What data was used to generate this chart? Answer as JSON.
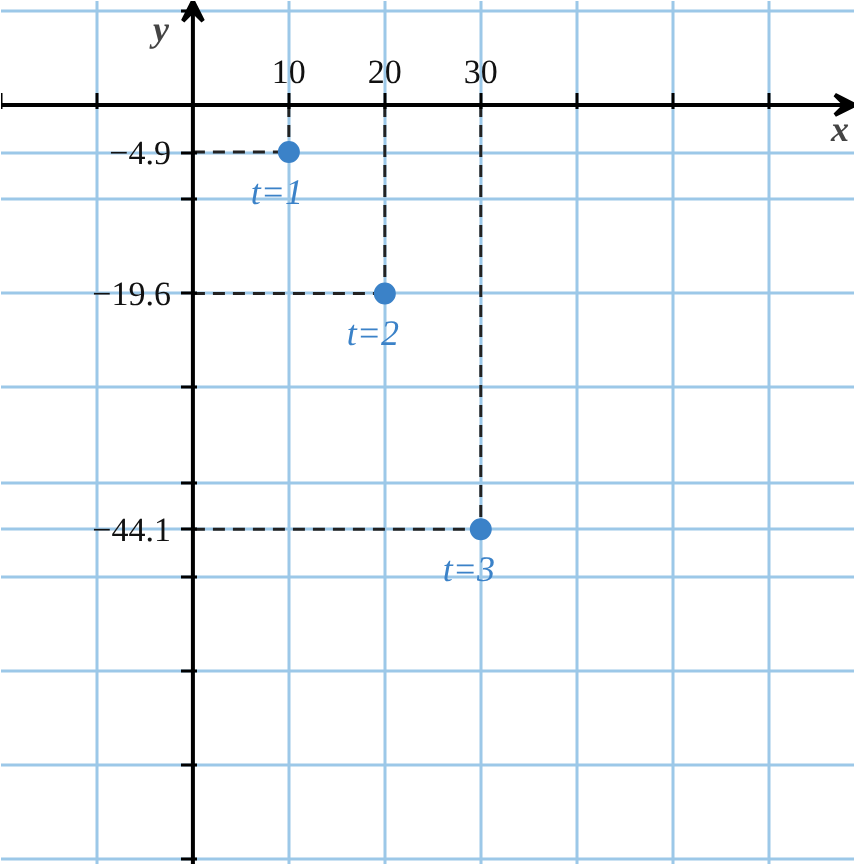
{
  "chart_data": {
    "type": "scatter",
    "xlabel": "x",
    "ylabel": "y",
    "x": [
      10,
      20,
      30
    ],
    "values": [
      -4.9,
      -19.6,
      -44.1
    ],
    "color": "#3b82c8",
    "marker": "circle",
    "line_style": "dashed",
    "grid": true,
    "xlim": [
      -20,
      69
    ],
    "ylim": [
      -79,
      10.8
    ],
    "xticks": [
      {
        "value": -20,
        "label": null
      },
      {
        "value": -10,
        "label": null
      },
      10,
      20,
      30,
      {
        "value": 40,
        "label": null
      },
      {
        "value": 50,
        "label": null
      },
      {
        "value": 60,
        "label": null
      }
    ],
    "yticks": [
      {
        "value": 9.8,
        "label": null
      },
      -4.9,
      {
        "value": -9.8,
        "label": null
      },
      -19.6,
      {
        "value": -29.4,
        "label": null
      },
      {
        "value": -39.2,
        "label": null
      },
      -44.1,
      {
        "value": -49,
        "label": null
      },
      {
        "value": -58.8,
        "label": null
      },
      {
        "value": -68.6,
        "label": null
      },
      {
        "value": -78.4,
        "label": null
      }
    ],
    "annotations": [
      {
        "text": "t=1",
        "x": 10,
        "y": -4.9
      },
      {
        "text": "t=2",
        "x": 20,
        "y": -19.6
      },
      {
        "text": "t=3",
        "x": 30,
        "y": -44.1
      }
    ]
  }
}
